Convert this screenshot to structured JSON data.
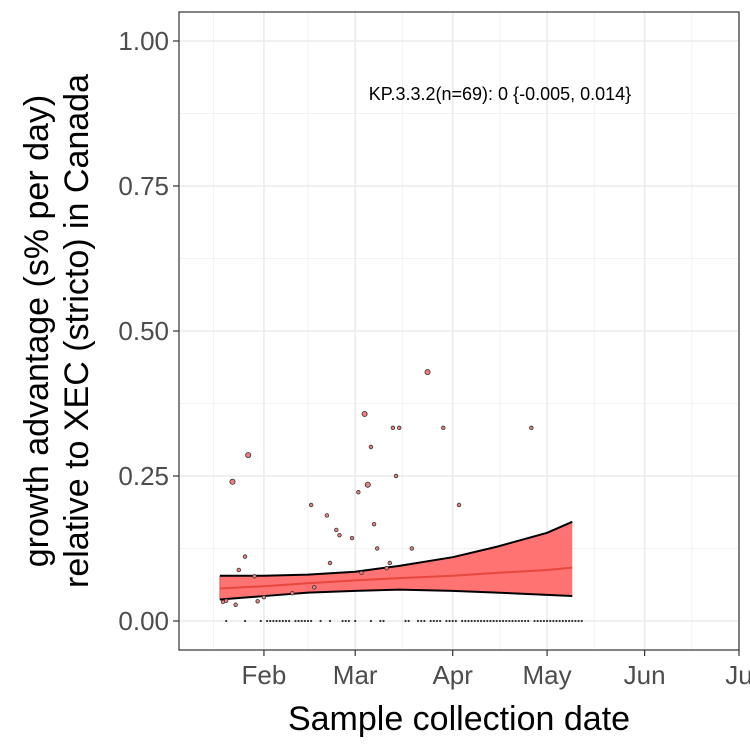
{
  "chart_data": {
    "type": "scatter",
    "title": "",
    "xlabel": "Sample collection date",
    "ylabel_lines": [
      "growth advantage (s% per day)",
      "relative to XEC (stricto) in Canada"
    ],
    "annotation": "KP.3.3.2(n=69): 0 {-0.005, 0.014}",
    "x_ticks": [
      "Feb",
      "Mar",
      "Apr",
      "May",
      "Jun",
      "Ju"
    ],
    "y_ticks": [
      "0.00",
      "0.25",
      "0.50",
      "0.75",
      "1.00"
    ],
    "ylim": [
      -0.05,
      1.05
    ],
    "xlim": [
      "2024-01-05",
      "2024-07-01"
    ],
    "grid": true,
    "legend": "none",
    "colors": {
      "ribbon_fill": "#ff6b6b",
      "ribbon_border": "#000000",
      "fit_line": "#e8483b",
      "point_fill": "#f08080",
      "point_stroke": "#333333"
    },
    "fit": {
      "x": [
        "2024-01-18",
        "2024-02-01",
        "2024-02-15",
        "2024-03-01",
        "2024-03-15",
        "2024-04-01",
        "2024-04-15",
        "2024-05-01",
        "2024-05-09"
      ],
      "y": [
        0.056,
        0.06,
        0.065,
        0.07,
        0.074,
        0.078,
        0.083,
        0.088,
        0.092
      ],
      "lower": [
        0.037,
        0.043,
        0.049,
        0.052,
        0.054,
        0.052,
        0.049,
        0.045,
        0.043
      ],
      "upper": [
        0.078,
        0.078,
        0.08,
        0.085,
        0.095,
        0.11,
        0.128,
        0.152,
        0.171
      ]
    },
    "points": [
      {
        "x": "2024-01-19",
        "y": 0.033,
        "size": 2
      },
      {
        "x": "2024-01-20",
        "y": 0.035,
        "size": 2
      },
      {
        "x": "2024-01-22",
        "y": 0.24,
        "size": 3
      },
      {
        "x": "2024-01-23",
        "y": 0.028,
        "size": 2
      },
      {
        "x": "2024-01-24",
        "y": 0.088,
        "size": 2
      },
      {
        "x": "2024-01-26",
        "y": 0.111,
        "size": 2
      },
      {
        "x": "2024-01-27",
        "y": 0.286,
        "size": 3
      },
      {
        "x": "2024-01-29",
        "y": 0.077,
        "size": 2
      },
      {
        "x": "2024-01-30",
        "y": 0.034,
        "size": 2
      },
      {
        "x": "2024-02-01",
        "y": 0.041,
        "size": 2
      },
      {
        "x": "2024-02-10",
        "y": 0.048,
        "size": 2
      },
      {
        "x": "2024-02-16",
        "y": 0.2,
        "size": 2
      },
      {
        "x": "2024-02-17",
        "y": 0.058,
        "size": 2
      },
      {
        "x": "2024-02-21",
        "y": 0.182,
        "size": 2
      },
      {
        "x": "2024-02-22",
        "y": 0.1,
        "size": 2
      },
      {
        "x": "2024-02-24",
        "y": 0.157,
        "size": 2
      },
      {
        "x": "2024-02-25",
        "y": 0.148,
        "size": 2
      },
      {
        "x": "2024-02-29",
        "y": 0.143,
        "size": 2
      },
      {
        "x": "2024-03-02",
        "y": 0.222,
        "size": 2
      },
      {
        "x": "2024-03-03",
        "y": 0.083,
        "size": 2
      },
      {
        "x": "2024-03-04",
        "y": 0.357,
        "size": 3
      },
      {
        "x": "2024-03-05",
        "y": 0.235,
        "size": 3
      },
      {
        "x": "2024-03-06",
        "y": 0.3,
        "size": 2
      },
      {
        "x": "2024-03-07",
        "y": 0.167,
        "size": 2
      },
      {
        "x": "2024-03-08",
        "y": 0.125,
        "size": 2
      },
      {
        "x": "2024-03-11",
        "y": 0.091,
        "size": 2
      },
      {
        "x": "2024-03-12",
        "y": 0.1,
        "size": 2
      },
      {
        "x": "2024-03-13",
        "y": 0.333,
        "size": 2
      },
      {
        "x": "2024-03-14",
        "y": 0.25,
        "size": 2
      },
      {
        "x": "2024-03-15",
        "y": 0.333,
        "size": 2
      },
      {
        "x": "2024-03-19",
        "y": 0.125,
        "size": 2
      },
      {
        "x": "2024-03-24",
        "y": 0.429,
        "size": 3
      },
      {
        "x": "2024-03-29",
        "y": 0.333,
        "size": 2
      },
      {
        "x": "2024-04-03",
        "y": 0.2,
        "size": 2
      },
      {
        "x": "2024-04-26",
        "y": 0.333,
        "size": 2
      }
    ],
    "zero_points": [
      "2024-01-20",
      "2024-01-26",
      "2024-01-31",
      "2024-02-02",
      "2024-02-03",
      "2024-02-04",
      "2024-02-05",
      "2024-02-06",
      "2024-02-07",
      "2024-02-08",
      "2024-02-09",
      "2024-02-11",
      "2024-02-12",
      "2024-02-13",
      "2024-02-14",
      "2024-02-15",
      "2024-02-16",
      "2024-02-19",
      "2024-02-22",
      "2024-02-26",
      "2024-02-27",
      "2024-02-28",
      "2024-03-01",
      "2024-03-06",
      "2024-03-09",
      "2024-03-10",
      "2024-03-17",
      "2024-03-18",
      "2024-03-21",
      "2024-03-22",
      "2024-03-23",
      "2024-03-25",
      "2024-03-26",
      "2024-03-27",
      "2024-03-28",
      "2024-03-30",
      "2024-03-31",
      "2024-04-01",
      "2024-04-02",
      "2024-04-04",
      "2024-04-05",
      "2024-04-06",
      "2024-04-07",
      "2024-04-08",
      "2024-04-09",
      "2024-04-10",
      "2024-04-11",
      "2024-04-12",
      "2024-04-13",
      "2024-04-14",
      "2024-04-15",
      "2024-04-16",
      "2024-04-17",
      "2024-04-18",
      "2024-04-19",
      "2024-04-20",
      "2024-04-21",
      "2024-04-22",
      "2024-04-23",
      "2024-04-24",
      "2024-04-25",
      "2024-04-27",
      "2024-04-28",
      "2024-04-29",
      "2024-04-30",
      "2024-05-01",
      "2024-05-02",
      "2024-05-03",
      "2024-05-04",
      "2024-05-05",
      "2024-05-06",
      "2024-05-07",
      "2024-05-08",
      "2024-05-09",
      "2024-05-10",
      "2024-05-11",
      "2024-05-12"
    ]
  }
}
